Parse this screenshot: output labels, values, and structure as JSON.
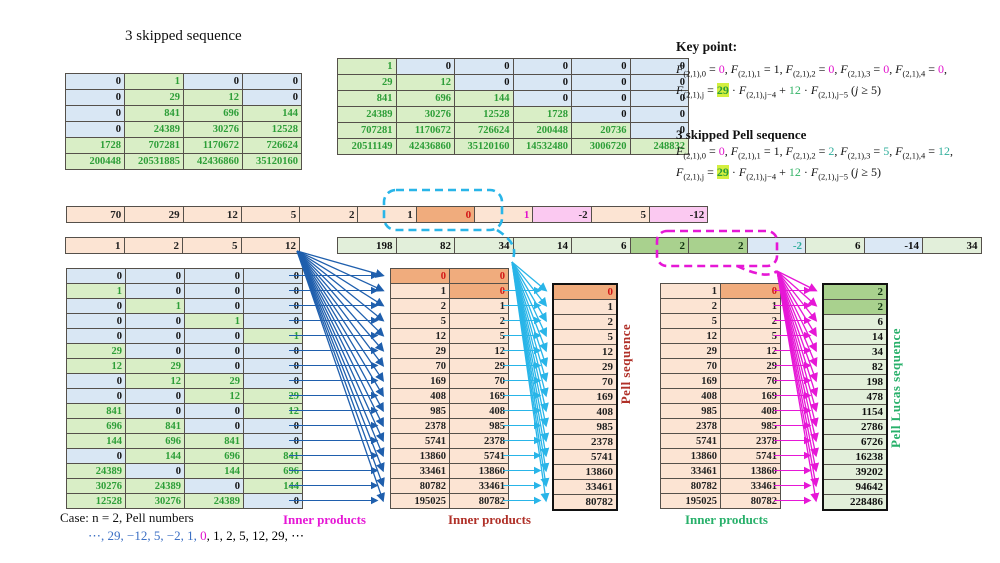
{
  "title": "3 skipped sequence",
  "colors": {
    "cell_green": "#d9eec6",
    "cell_blue": "#d9e7f4",
    "cell_peach": "#fce4d3",
    "cell_orange": "#f0ac7d",
    "cell_pink": "#fbc9f1",
    "cell_ltgreen": "#e2efda",
    "cell_dkgreen": "#a9d18e",
    "cell_ltblue": "#dbe8f5",
    "green_text": "#2d9e38",
    "red": "#d21616",
    "magenta": "#e213cc",
    "teal": "#2fae9b",
    "green2": "#2fb163",
    "seq_blue": "#3b6fc4",
    "hl_yellow_green": "#d4ef3f",
    "cyan": "#29b5e8",
    "blue_arrow": "#1f5fad",
    "magenta_arrow": "#e617d6",
    "dark_red": "#b03028",
    "label_green": "#27b06a"
  },
  "key_point": {
    "heading": "Key point:",
    "lines": [
      [
        {
          "t": "F",
          "i": 1,
          "sub": "(2,1),0"
        },
        {
          "t": " = "
        },
        {
          "t": "0",
          "c": "magenta"
        },
        {
          "t": ", "
        },
        {
          "t": "F",
          "i": 1,
          "sub": "(2,1),1"
        },
        {
          "t": " = 1, "
        },
        {
          "t": "F",
          "i": 1,
          "sub": "(2,1),2"
        },
        {
          "t": " = "
        },
        {
          "t": "0",
          "c": "magenta"
        },
        {
          "t": ", "
        },
        {
          "t": "F",
          "i": 1,
          "sub": "(2,1),3"
        },
        {
          "t": " = "
        },
        {
          "t": "0",
          "c": "magenta"
        },
        {
          "t": ", "
        },
        {
          "t": "F",
          "i": 1,
          "sub": "(2,1),4"
        },
        {
          "t": " = "
        },
        {
          "t": "0",
          "c": "magenta"
        },
        {
          "t": ","
        }
      ],
      [
        {
          "t": "F",
          "i": 1,
          "sub": "(2,1),j"
        },
        {
          "t": " = "
        },
        {
          "t": "29",
          "c": "hl"
        },
        {
          "t": " · "
        },
        {
          "t": "F",
          "i": 1,
          "sub": "(2,1),j−4"
        },
        {
          "t": " + "
        },
        {
          "t": "12",
          "c": "green2"
        },
        {
          "t": " · "
        },
        {
          "t": "F",
          "i": 1,
          "sub": "(2,1),j−5"
        },
        {
          "t": "    ("
        },
        {
          "t": "j",
          "i": 1
        },
        {
          "t": " ≥ 5)"
        }
      ]
    ]
  },
  "pell_note": {
    "heading": "3 skipped Pell sequence",
    "lines": [
      [
        {
          "t": "F",
          "i": 1,
          "sub": "(2,1),0"
        },
        {
          "t": " = "
        },
        {
          "t": "0",
          "c": "magenta"
        },
        {
          "t": ", "
        },
        {
          "t": "F",
          "i": 1,
          "sub": "(2,1),1"
        },
        {
          "t": " = 1, "
        },
        {
          "t": "F",
          "i": 1,
          "sub": "(2,1),2"
        },
        {
          "t": " = "
        },
        {
          "t": "2",
          "c": "teal"
        },
        {
          "t": ", "
        },
        {
          "t": "F",
          "i": 1,
          "sub": "(2,1),3"
        },
        {
          "t": " = "
        },
        {
          "t": "5",
          "c": "teal"
        },
        {
          "t": ", "
        },
        {
          "t": "F",
          "i": 1,
          "sub": "(2,1),4"
        },
        {
          "t": " = "
        },
        {
          "t": "12",
          "c": "teal"
        },
        {
          "t": ","
        }
      ],
      [
        {
          "t": "F",
          "i": 1,
          "sub": "(2,1),j"
        },
        {
          "t": " = "
        },
        {
          "t": "29",
          "c": "hl"
        },
        {
          "t": " · "
        },
        {
          "t": "F",
          "i": 1,
          "sub": "(2,1),j−4"
        },
        {
          "t": " + "
        },
        {
          "t": "12",
          "c": "green2"
        },
        {
          "t": " · "
        },
        {
          "t": "F",
          "i": 1,
          "sub": "(2,1),j−5"
        },
        {
          "t": "    ("
        },
        {
          "t": "j",
          "i": 1
        },
        {
          "t": " ≥ 5)"
        }
      ]
    ]
  },
  "matrices": {
    "top_left": [
      [
        0,
        1,
        0,
        0
      ],
      [
        0,
        29,
        12,
        0
      ],
      [
        0,
        841,
        696,
        144
      ],
      [
        0,
        24389,
        30276,
        12528
      ],
      [
        1728,
        707281,
        1170672,
        726624
      ],
      [
        200448,
        20531885,
        42436860,
        35120160
      ]
    ],
    "top_mid": [
      [
        1,
        0,
        0,
        0,
        0,
        0
      ],
      [
        29,
        12,
        0,
        0,
        0,
        0
      ],
      [
        841,
        696,
        144,
        0,
        0,
        0
      ],
      [
        24389,
        30276,
        12528,
        1728,
        0,
        0
      ],
      [
        707281,
        1170672,
        726624,
        200448,
        20736,
        0
      ],
      [
        20511149,
        42436860,
        35120160,
        14532480,
        3006720,
        248832
      ]
    ],
    "bottom_left": [
      [
        0,
        0,
        0,
        0
      ],
      [
        1,
        0,
        0,
        0
      ],
      [
        0,
        1,
        0,
        0
      ],
      [
        0,
        0,
        1,
        0
      ],
      [
        0,
        0,
        0,
        1
      ],
      [
        29,
        0,
        0,
        0
      ],
      [
        12,
        29,
        0,
        0
      ],
      [
        0,
        12,
        29,
        0
      ],
      [
        0,
        0,
        12,
        29
      ],
      [
        841,
        0,
        0,
        12
      ],
      [
        696,
        841,
        0,
        0
      ],
      [
        144,
        696,
        841,
        0
      ],
      [
        0,
        144,
        696,
        841
      ],
      [
        24389,
        0,
        144,
        696
      ],
      [
        30276,
        24389,
        0,
        144
      ],
      [
        12528,
        30276,
        24389,
        0
      ]
    ],
    "pair_mid": [
      [
        0,
        0
      ],
      [
        1,
        0
      ],
      [
        2,
        1
      ],
      [
        5,
        2
      ],
      [
        12,
        5
      ],
      [
        29,
        12
      ],
      [
        70,
        29
      ],
      [
        169,
        70
      ],
      [
        408,
        169
      ],
      [
        985,
        408
      ],
      [
        2378,
        985
      ],
      [
        5741,
        2378
      ],
      [
        13860,
        5741
      ],
      [
        33461,
        13860
      ],
      [
        80782,
        33461
      ],
      [
        195025,
        80782
      ]
    ],
    "pair_right": [
      [
        1,
        0
      ],
      [
        2,
        1
      ],
      [
        5,
        2
      ],
      [
        12,
        5
      ],
      [
        29,
        12
      ],
      [
        70,
        29
      ],
      [
        169,
        70
      ],
      [
        408,
        169
      ],
      [
        985,
        408
      ],
      [
        2378,
        985
      ],
      [
        5741,
        2378
      ],
      [
        13860,
        5741
      ],
      [
        33461,
        13860
      ],
      [
        80782,
        33461
      ],
      [
        195025,
        80782
      ]
    ]
  },
  "results": {
    "mid": {
      "values": [
        0,
        1,
        2,
        5,
        12,
        29,
        70,
        169,
        408,
        985,
        2378,
        5741,
        13860,
        33461,
        80782
      ]
    },
    "right": {
      "values": [
        2,
        2,
        6,
        14,
        34,
        82,
        198,
        478,
        1154,
        2786,
        6726,
        16238,
        39202,
        94642,
        228486
      ],
      "highlight_rows": [
        0,
        1
      ]
    }
  },
  "strips": {
    "strip1": [
      {
        "v": 70,
        "c": "o"
      },
      {
        "v": 29,
        "c": "o"
      },
      {
        "v": 12,
        "c": "o"
      },
      {
        "v": 5,
        "c": "o"
      },
      {
        "v": 2,
        "c": "o"
      },
      {
        "v": 1,
        "c": "o"
      },
      {
        "v": 0,
        "c": "O",
        "box": "l"
      },
      {
        "v": 1,
        "c": "m",
        "box": "r"
      },
      {
        "v": -2,
        "c": "pk"
      },
      {
        "v": 5,
        "c": "o"
      },
      {
        "v": -12,
        "c": "pk"
      }
    ],
    "strip2a": [
      {
        "v": 1,
        "c": "o"
      },
      {
        "v": 2,
        "c": "o"
      },
      {
        "v": 5,
        "c": "o"
      },
      {
        "v": 12,
        "c": "o"
      }
    ],
    "strip2b": [
      {
        "v": 198,
        "c": "g"
      },
      {
        "v": 82,
        "c": "g"
      },
      {
        "v": 34,
        "c": "g"
      },
      {
        "v": 14,
        "c": "g"
      },
      {
        "v": 6,
        "c": "g"
      },
      {
        "v": 2,
        "c": "G"
      },
      {
        "v": 2,
        "c": "G",
        "box": "l"
      },
      {
        "v": -2,
        "c": "bt",
        "box": "r"
      },
      {
        "v": 6,
        "c": "g"
      },
      {
        "v": -14,
        "c": "b"
      },
      {
        "v": 34,
        "c": "g"
      }
    ]
  },
  "labels": {
    "pell_sequence": "Pell sequence",
    "pell_lucas_sequence": "Pell Lucas sequence",
    "inner_products_1": "Inner products",
    "inner_products_2": "Inner products",
    "inner_products_3": "Inner products",
    "case_line": "Case: n = 2, Pell numbers"
  },
  "sequence_line": [
    {
      "t": "⋯, 29, −12, 5, −2, 1, ",
      "c": "blue"
    },
    {
      "t": "0",
      "c": "magenta"
    },
    {
      "t": ", 1, 2, 5, 12, 29, ⋯"
    }
  ]
}
